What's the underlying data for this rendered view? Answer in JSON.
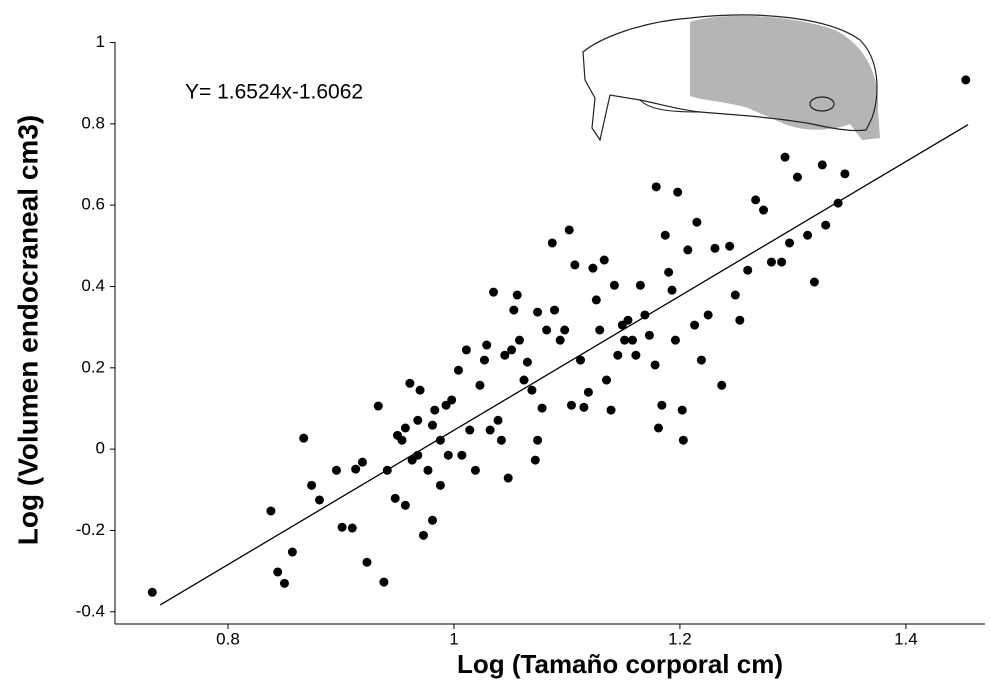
{
  "chart_data": {
    "type": "scatter",
    "annotation": "Y= 1.6524x-1.6062",
    "xlabel": "Log (Tamaño corporal cm)",
    "ylabel": "Log (Volumen endocraneal cm3)",
    "xlim": [
      0.7,
      1.47
    ],
    "xticks": [
      0.8,
      1,
      1.2,
      1.4
    ],
    "ylim": [
      -0.43,
      1
    ],
    "yticks": [
      1,
      0.8,
      0.6,
      0.4,
      0.2,
      0,
      -0.2,
      -0.4
    ],
    "color": "#000000",
    "fit_line": {
      "x": [
        0.74,
        1.455
      ],
      "y": [
        -0.383,
        0.798
      ]
    },
    "x": [
      0.733,
      0.838,
      0.844,
      0.85,
      0.857,
      0.867,
      0.874,
      0.881,
      0.896,
      0.901,
      0.91,
      0.913,
      0.919,
      0.923,
      0.933,
      0.938,
      0.941,
      0.948,
      0.95,
      0.954,
      0.957,
      0.957,
      0.961,
      0.963,
      0.968,
      0.968,
      0.97,
      0.973,
      0.977,
      0.981,
      0.981,
      0.983,
      0.988,
      0.988,
      0.993,
      0.995,
      0.998,
      1.004,
      1.007,
      1.011,
      1.014,
      1.019,
      1.023,
      1.027,
      1.029,
      1.032,
      1.035,
      1.039,
      1.042,
      1.045,
      1.048,
      1.051,
      1.053,
      1.056,
      1.058,
      1.062,
      1.065,
      1.069,
      1.072,
      1.074,
      1.074,
      1.078,
      1.082,
      1.087,
      1.089,
      1.094,
      1.098,
      1.102,
      1.104,
      1.107,
      1.112,
      1.115,
      1.119,
      1.123,
      1.126,
      1.129,
      1.133,
      1.135,
      1.139,
      1.142,
      1.145,
      1.149,
      1.151,
      1.154,
      1.158,
      1.161,
      1.165,
      1.169,
      1.173,
      1.178,
      1.179,
      1.181,
      1.184,
      1.187,
      1.19,
      1.193,
      1.196,
      1.198,
      1.202,
      1.203,
      1.207,
      1.213,
      1.215,
      1.219,
      1.225,
      1.231,
      1.237,
      1.244,
      1.249,
      1.253,
      1.26,
      1.267,
      1.274,
      1.281,
      1.29,
      1.293,
      1.297,
      1.304,
      1.313,
      1.319,
      1.326,
      1.329,
      1.34,
      1.346,
      1.453
    ],
    "values": [
      -0.352,
      -0.152,
      -0.302,
      -0.33,
      -0.253,
      0.027,
      -0.089,
      -0.125,
      -0.052,
      -0.192,
      -0.194,
      -0.049,
      -0.032,
      -0.278,
      0.106,
      -0.327,
      -0.052,
      -0.121,
      0.034,
      0.022,
      -0.138,
      0.052,
      0.162,
      -0.027,
      0.071,
      -0.015,
      0.145,
      -0.212,
      -0.052,
      0.059,
      -0.175,
      0.096,
      0.022,
      -0.089,
      0.108,
      -0.015,
      0.121,
      0.194,
      -0.015,
      0.244,
      0.047,
      -0.052,
      0.157,
      0.219,
      0.256,
      0.047,
      0.386,
      0.071,
      0.022,
      0.231,
      -0.071,
      0.244,
      0.342,
      0.379,
      0.268,
      0.17,
      0.214,
      0.145,
      -0.027,
      0.337,
      0.022,
      0.101,
      0.293,
      0.507,
      0.342,
      0.268,
      0.293,
      0.539,
      0.108,
      0.453,
      0.219,
      0.103,
      0.14,
      0.445,
      0.367,
      0.293,
      0.465,
      0.17,
      0.096,
      0.403,
      0.231,
      0.305,
      0.268,
      0.317,
      0.268,
      0.231,
      0.403,
      0.33,
      0.28,
      0.207,
      0.645,
      0.052,
      0.108,
      0.526,
      0.435,
      0.391,
      0.268,
      0.632,
      0.096,
      0.022,
      0.49,
      0.305,
      0.558,
      0.219,
      0.33,
      0.494,
      0.157,
      0.499,
      0.379,
      0.317,
      0.44,
      0.613,
      0.588,
      0.46,
      0.46,
      0.718,
      0.507,
      0.669,
      0.526,
      0.411,
      0.699,
      0.551,
      0.605,
      0.677,
      0.908
    ]
  }
}
